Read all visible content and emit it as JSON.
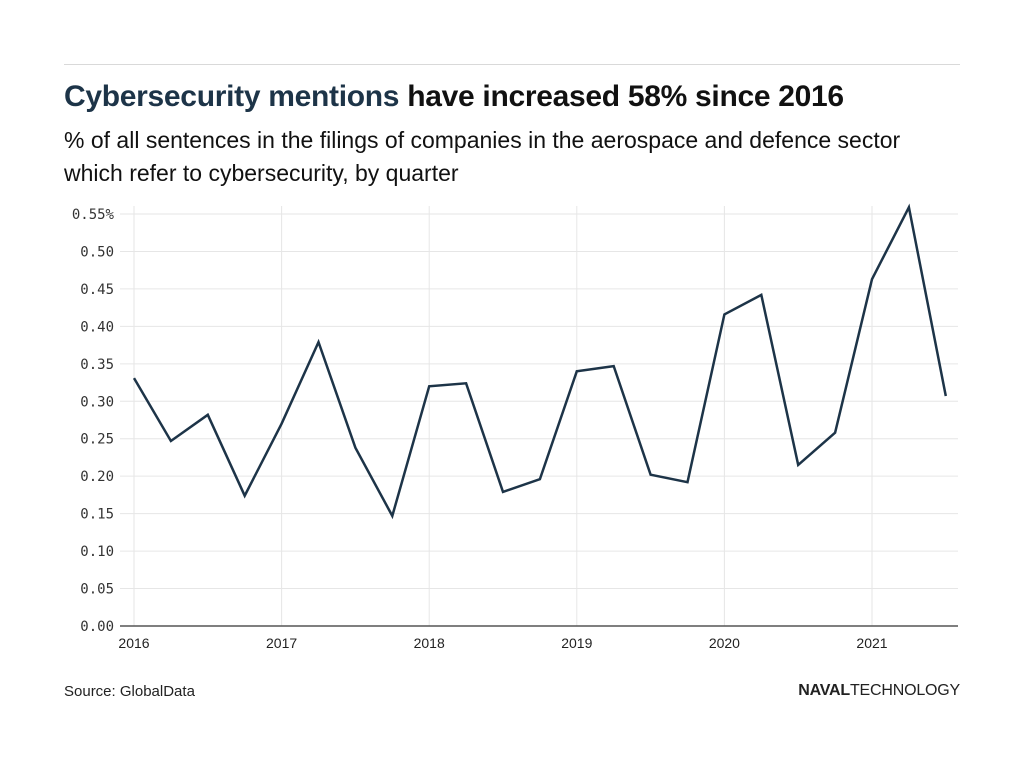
{
  "header": {
    "title_highlight": "Cybersecurity mentions",
    "title_rest": " have increased 58% since 2016",
    "subtitle": "% of all sentences in the filings of companies in the aerospace and defence sector which refer to cybersecurity, by quarter"
  },
  "footer": {
    "source": "Source: GlobalData",
    "brand_bold": "NAVAL",
    "brand_light": "TECHNOLOGY"
  },
  "colors": {
    "line": "#1d3448",
    "highlight": "#1d3448",
    "grid": "#e6e6e6",
    "axis": "#555555"
  },
  "chart_data": {
    "type": "line",
    "title": "Cybersecurity mentions have increased 58% since 2016",
    "subtitle": "% of all sentences in the filings of companies in the aerospace and defence sector which refer to cybersecurity, by quarter",
    "xlabel": "",
    "ylabel": "",
    "x": [
      "2016Q1",
      "2016Q2",
      "2016Q3",
      "2016Q4",
      "2017Q1",
      "2017Q2",
      "2017Q3",
      "2017Q4",
      "2018Q1",
      "2018Q2",
      "2018Q3",
      "2018Q4",
      "2019Q1",
      "2019Q2",
      "2019Q3",
      "2019Q4",
      "2020Q1",
      "2020Q2",
      "2020Q3",
      "2020Q4",
      "2021Q1",
      "2021Q2",
      "2021Q3"
    ],
    "series": [
      {
        "name": "Cybersecurity mentions",
        "values": [
          0.331,
          0.247,
          0.282,
          0.174,
          0.27,
          0.379,
          0.238,
          0.147,
          0.32,
          0.324,
          0.179,
          0.196,
          0.34,
          0.347,
          0.202,
          0.192,
          0.416,
          0.442,
          0.215,
          0.258,
          0.463,
          0.559,
          0.307
        ]
      }
    ],
    "ylim": [
      0,
      0.55
    ],
    "xlim_years": [
      2016,
      2021.6
    ],
    "yticks": [
      {
        "value": 0.55,
        "label": "0.55%"
      },
      {
        "value": 0.5,
        "label": "0.50"
      },
      {
        "value": 0.45,
        "label": "0.45"
      },
      {
        "value": 0.4,
        "label": "0.40"
      },
      {
        "value": 0.35,
        "label": "0.35"
      },
      {
        "value": 0.3,
        "label": "0.30"
      },
      {
        "value": 0.25,
        "label": "0.25"
      },
      {
        "value": 0.2,
        "label": "0.20"
      },
      {
        "value": 0.15,
        "label": "0.15"
      },
      {
        "value": 0.1,
        "label": "0.10"
      },
      {
        "value": 0.05,
        "label": "0.05"
      },
      {
        "value": 0.0,
        "label": "0.00"
      }
    ],
    "xticks": [
      {
        "value": 2016,
        "label": "2016"
      },
      {
        "value": 2017,
        "label": "2017"
      },
      {
        "value": 2018,
        "label": "2018"
      },
      {
        "value": 2019,
        "label": "2019"
      },
      {
        "value": 2020,
        "label": "2020"
      },
      {
        "value": 2021,
        "label": "2021"
      }
    ],
    "grid": true,
    "legend": "none",
    "source": "Source: GlobalData"
  }
}
